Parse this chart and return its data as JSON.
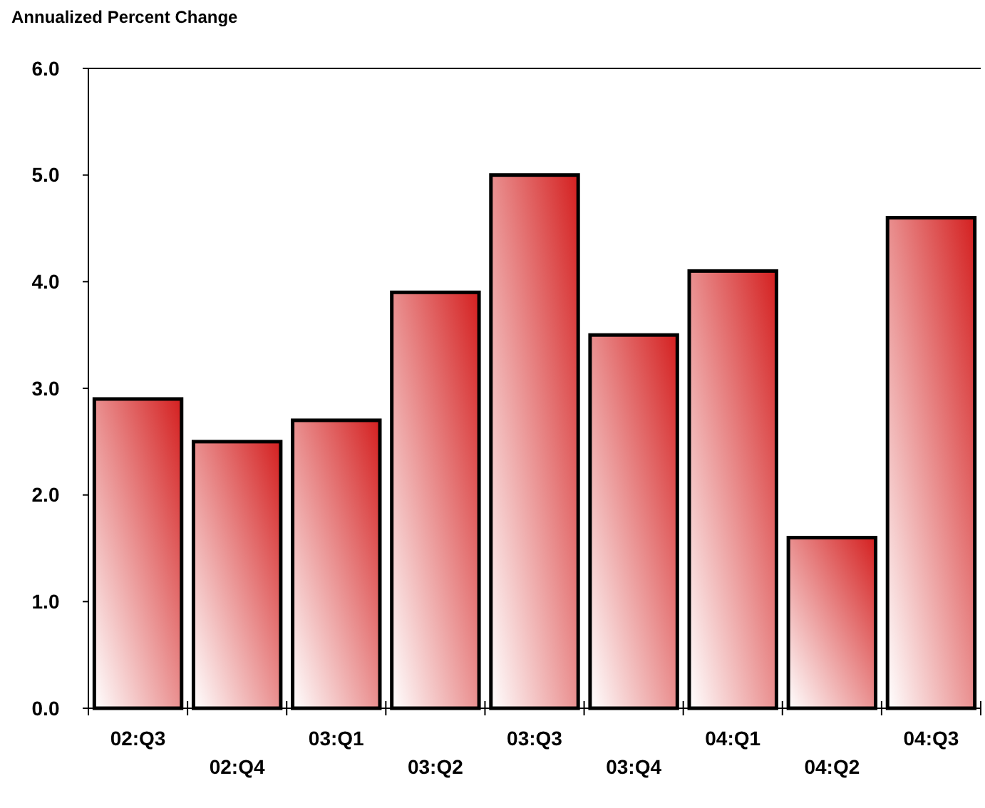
{
  "chart_data": {
    "type": "bar",
    "title": "Annualized Percent Change",
    "categories": [
      "02:Q3",
      "02:Q4",
      "03:Q1",
      "03:Q2",
      "03:Q3",
      "03:Q4",
      "04:Q1",
      "04:Q2",
      "04:Q3"
    ],
    "values": [
      2.9,
      2.5,
      2.7,
      3.9,
      5.0,
      3.5,
      4.1,
      1.6,
      4.6
    ],
    "color": "#d42020",
    "ylim": [
      0,
      6
    ],
    "yticks": [
      {
        "value": 0,
        "label": "0.0"
      },
      {
        "value": 1,
        "label": "1.0"
      },
      {
        "value": 2,
        "label": "2.0"
      },
      {
        "value": 3,
        "label": "3.0"
      },
      {
        "value": 4,
        "label": "4.0"
      },
      {
        "value": 5,
        "label": "5.0"
      },
      {
        "value": 6,
        "label": "6.0"
      }
    ],
    "grid": false,
    "legend": false
  }
}
